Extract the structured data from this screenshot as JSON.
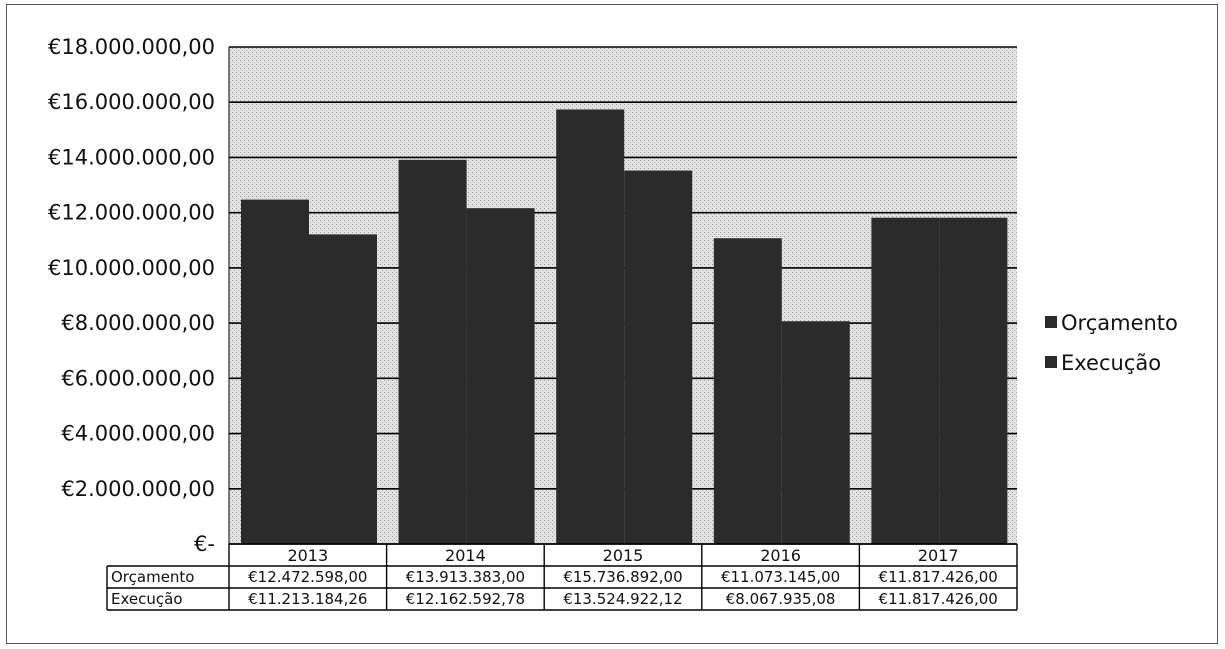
{
  "chart_data": {
    "type": "bar",
    "title": "",
    "xlabel": "",
    "ylabel": "",
    "categories": [
      "2013",
      "2014",
      "2015",
      "2016",
      "2017"
    ],
    "series": [
      {
        "name": "Orçamento",
        "values": [
          12472598.0,
          13913383.0,
          15736892.0,
          11073145.0,
          11817426.0
        ],
        "labels": [
          "€12.472.598,00",
          "€13.913.383,00",
          "€15.736.892,00",
          "€11.073.145,00",
          "€11.817.426,00"
        ]
      },
      {
        "name": "Execução",
        "values": [
          11213184.26,
          12162592.78,
          13524922.12,
          8067935.08,
          11817426.0
        ],
        "labels": [
          "€11.213.184,26",
          "€12.162.592,78",
          "€13.524.922,12",
          "€8.067.935,08",
          "€11.817.426,00"
        ]
      }
    ],
    "ylim": [
      0,
      18000000
    ],
    "yticks": [
      0,
      2000000,
      4000000,
      6000000,
      8000000,
      10000000,
      12000000,
      14000000,
      16000000,
      18000000
    ],
    "ytick_labels": [
      "€-",
      "€2.000.000,00",
      "€4.000.000,00",
      "€6.000.000,00",
      "€8.000.000,00",
      "€10.000.000,00",
      "€12.000.000,00",
      "€14.000.000,00",
      "€16.000.000,00",
      "€18.000.000,00"
    ],
    "grid": true,
    "legend_position": "right",
    "data_table": true,
    "colors": {
      "bars": "#2b2b2b",
      "plot_background": "#d9d9d9",
      "grid": "#000000"
    }
  }
}
